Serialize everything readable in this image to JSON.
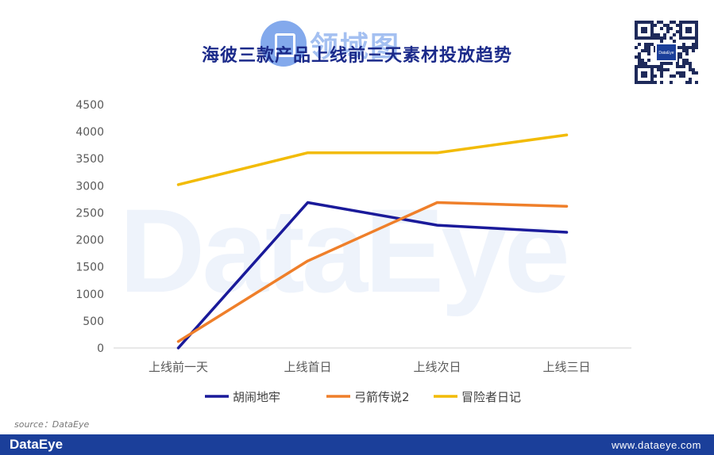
{
  "watermark": "DataEye",
  "header": {
    "title": "海彼三款产品上线前三天素材投放趋势",
    "stamp_text": "领域图"
  },
  "qr": {
    "label": "DataEye"
  },
  "source": "source：DataEye",
  "footer": {
    "logo": "DataEye",
    "url": "www.dataeye.com"
  },
  "colors": {
    "series": [
      "#1a1a9a",
      "#ef7f2a",
      "#f2bb05"
    ],
    "axis": "#d0d0d0",
    "tick_text": "#595959",
    "footer_bg": "#1b3f9a"
  },
  "chart_data": {
    "type": "line",
    "title": "海彼三款产品上线前三天素材投放趋势",
    "categories": [
      "上线前一天",
      "上线首日",
      "上线次日",
      "上线三日"
    ],
    "y_ticks": [
      "0",
      "500",
      "1000",
      "1500",
      "2000",
      "2500",
      "3000",
      "3500",
      "4000",
      "4500"
    ],
    "ylim": [
      0,
      4500
    ],
    "grid": false,
    "legend_position": "bottom",
    "series": [
      {
        "name": "胡闹地牢",
        "values": [
          0,
          2690,
          2270,
          2140
        ]
      },
      {
        "name": "弓箭传说2",
        "values": [
          120,
          1610,
          2690,
          2620
        ]
      },
      {
        "name": "冒险者日记",
        "values": [
          3020,
          3610,
          3610,
          3940
        ]
      }
    ]
  }
}
